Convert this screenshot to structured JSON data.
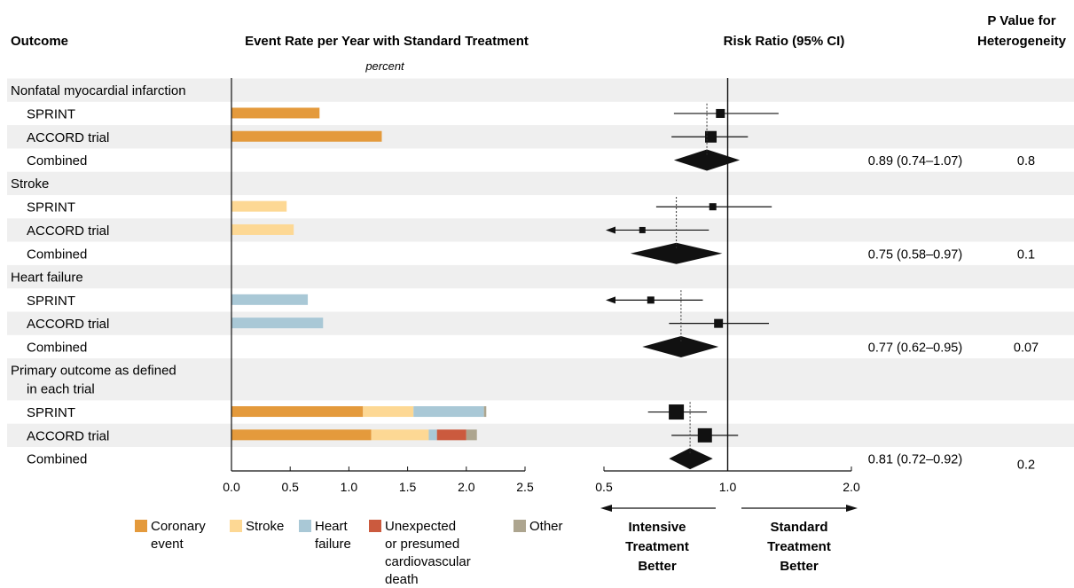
{
  "headers": {
    "outcome": "Outcome",
    "event_rate": "Event Rate per Year with Standard Treatment",
    "event_rate_unit": "percent",
    "risk_ratio": "Risk Ratio (95% CI)",
    "p_value_line1": "P Value for",
    "p_value_line2": "Heterogeneity"
  },
  "colors": {
    "coronary": "#E49A3C",
    "stroke": "#FDD894",
    "heart_failure": "#A9C8D6",
    "cv_death": "#CB5A3E",
    "other": "#ADA58F",
    "band": "#EFEFEF"
  },
  "chart_data": [
    {
      "type": "bar",
      "stacked": true,
      "orientation": "horizontal",
      "xlim": [
        0,
        2.5
      ],
      "xticks": [
        "0.0",
        "0.5",
        "1.0",
        "1.5",
        "2.0",
        "2.5"
      ],
      "xtick_values": [
        0,
        0.5,
        1.0,
        1.5,
        2.0,
        2.5
      ],
      "series": [
        {
          "name": "Coronary event",
          "color_key": "coronary"
        },
        {
          "name": "Stroke",
          "color_key": "stroke"
        },
        {
          "name": "Heart failure",
          "color_key": "heart_failure"
        },
        {
          "name": "Unexpected or presumed cardiovascular death",
          "color_key": "cv_death"
        },
        {
          "name": "Other",
          "color_key": "other"
        }
      ],
      "legend_items": [
        {
          "label_lines": [
            "Coronary",
            "event"
          ],
          "color_key": "coronary"
        },
        {
          "label_lines": [
            "Stroke"
          ],
          "color_key": "stroke"
        },
        {
          "label_lines": [
            "Heart",
            "failure"
          ],
          "color_key": "heart_failure"
        },
        {
          "label_lines": [
            "Unexpected",
            "or presumed",
            "cardiovascular",
            "death"
          ],
          "color_key": "cv_death"
        },
        {
          "label_lines": [
            "Other"
          ],
          "color_key": "other"
        }
      ],
      "legend_placement": "bottom"
    },
    {
      "type": "scatter",
      "subtype": "forest",
      "scale": "log",
      "xlim": [
        0.5,
        2.0
      ],
      "xticks": [
        "0.5",
        "1.0",
        "2.0"
      ],
      "xtick_values": [
        0.5,
        1.0,
        2.0
      ],
      "reference_line": 1.0,
      "left_arrow_label_lines": [
        "Intensive",
        "Treatment",
        "Better"
      ],
      "right_arrow_label_lines": [
        "Standard",
        "Treatment",
        "Better"
      ]
    }
  ],
  "groups": [
    {
      "label": [
        "Nonfatal myocardial infarction"
      ],
      "rows": [
        {
          "label": "SPRINT",
          "bars": [
            {
              "series": "coronary",
              "value": 0.75
            }
          ],
          "rr": 0.96,
          "ci": [
            0.74,
            1.33
          ],
          "size": 10,
          "arrow_left": false
        },
        {
          "label": "ACCORD trial",
          "bars": [
            {
              "series": "coronary",
              "value": 1.28
            }
          ],
          "rr": 0.91,
          "ci": [
            0.73,
            1.12
          ],
          "size": 13,
          "arrow_left": false
        },
        {
          "label": "Combined",
          "bars": [],
          "diamond": true,
          "rr": 0.89,
          "ci": [
            0.74,
            1.07
          ],
          "rr_text": "0.89 (0.74–1.07)",
          "p_text": "0.8"
        }
      ]
    },
    {
      "label": [
        "Stroke"
      ],
      "rows": [
        {
          "label": "SPRINT",
          "bars": [
            {
              "series": "stroke",
              "value": 0.47
            }
          ],
          "rr": 0.92,
          "ci": [
            0.67,
            1.28
          ],
          "size": 8,
          "arrow_left": false
        },
        {
          "label": "ACCORD trial",
          "bars": [
            {
              "series": "stroke",
              "value": 0.53
            }
          ],
          "rr": 0.62,
          "ci": [
            0.5,
            0.9
          ],
          "size": 7,
          "arrow_left": true
        },
        {
          "label": "Combined",
          "bars": [],
          "diamond": true,
          "rr": 0.75,
          "ci": [
            0.58,
            0.97
          ],
          "rr_text": "0.75 (0.58–0.97)",
          "p_text": "0.1"
        }
      ]
    },
    {
      "label": [
        "Heart failure"
      ],
      "rows": [
        {
          "label": "SPRINT",
          "bars": [
            {
              "series": "heart_failure",
              "value": 0.65
            }
          ],
          "rr": 0.65,
          "ci": [
            0.5,
            0.87
          ],
          "size": 8,
          "arrow_left": true
        },
        {
          "label": "ACCORD trial",
          "bars": [
            {
              "series": "heart_failure",
              "value": 0.78
            }
          ],
          "rr": 0.95,
          "ci": [
            0.72,
            1.26
          ],
          "size": 10,
          "arrow_left": false
        },
        {
          "label": "Combined",
          "bars": [],
          "diamond": true,
          "rr": 0.77,
          "ci": [
            0.62,
            0.95
          ],
          "rr_text": "0.77 (0.62–0.95)",
          "p_text": "0.07"
        }
      ]
    },
    {
      "label": [
        "Primary outcome as defined",
        "in each trial"
      ],
      "rows": [
        {
          "label": "SPRINT",
          "bars": [
            {
              "series": "coronary",
              "value": 1.12
            },
            {
              "series": "stroke",
              "value": 0.43
            },
            {
              "series": "heart_failure",
              "value": 0.6
            },
            {
              "series": "other",
              "value": 0.02
            }
          ],
          "rr": 0.75,
          "ci": [
            0.64,
            0.89
          ],
          "size": 17,
          "arrow_left": false
        },
        {
          "label": "ACCORD trial",
          "bars": [
            {
              "series": "coronary",
              "value": 1.19
            },
            {
              "series": "stroke",
              "value": 0.49
            },
            {
              "series": "heart_failure",
              "value": 0.07
            },
            {
              "series": "cv_death",
              "value": 0.25
            },
            {
              "series": "other",
              "value": 0.09
            }
          ],
          "rr": 0.88,
          "ci": [
            0.73,
            1.06
          ],
          "size": 16,
          "arrow_left": false
        },
        {
          "label": "Combined",
          "bars": [],
          "diamond": true,
          "rr": 0.81,
          "ci": [
            0.72,
            0.92
          ],
          "rr_text": "0.81 (0.72–0.92)",
          "p_text": "0.2"
        }
      ]
    }
  ]
}
